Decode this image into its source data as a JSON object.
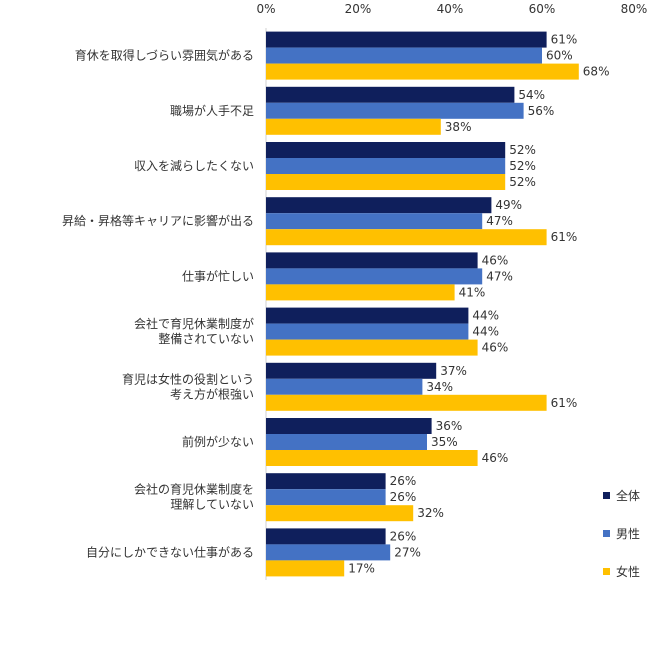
{
  "chart_data": {
    "type": "bar",
    "orientation": "horizontal",
    "categories": [
      [
        "育休を取得しづらい雰囲気がある"
      ],
      [
        "職場が人手不足"
      ],
      [
        "収入を減らしたくない"
      ],
      [
        "昇給・昇格等キャリアに影響が出る"
      ],
      [
        "仕事が忙しい"
      ],
      [
        "会社で育児休業制度が",
        "整備されていない"
      ],
      [
        "育児は女性の役割という",
        "考え方が根強い"
      ],
      [
        "前例が少ない"
      ],
      [
        "会社の育児休業制度を",
        "理解していない"
      ],
      [
        "自分にしかできない仕事がある"
      ]
    ],
    "series": [
      {
        "name": "全体",
        "color": "#0f1f5c",
        "values": [
          61,
          54,
          52,
          49,
          46,
          44,
          37,
          36,
          26,
          26
        ]
      },
      {
        "name": "男性",
        "color": "#4472c4",
        "values": [
          60,
          56,
          52,
          47,
          47,
          44,
          34,
          35,
          26,
          27
        ]
      },
      {
        "name": "女性",
        "color": "#ffc000",
        "values": [
          68,
          38,
          52,
          61,
          41,
          46,
          61,
          46,
          32,
          17
        ]
      }
    ],
    "xlim": [
      0,
      80
    ],
    "ticks": [
      0,
      20,
      40,
      60,
      80
    ],
    "tick_suffix": "%",
    "value_suffix": "%",
    "legend_position": "right-bottom",
    "grid": false
  }
}
